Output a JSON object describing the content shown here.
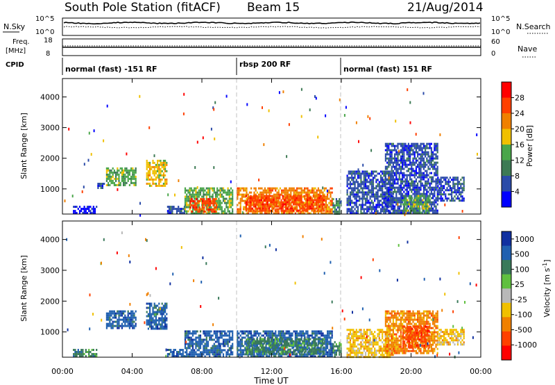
{
  "header": {
    "station": "South Pole Station (fitACF)",
    "beam": "Beam 15",
    "date": "21/Aug/2014"
  },
  "top_panels": {
    "nsky_label": "N.Sky",
    "nsearch_label": "N.Search",
    "nsky_ticks": [
      "10^5",
      "10^0"
    ],
    "nsearch_ticks": [
      "10^5",
      "10^0"
    ],
    "freq_label_line1": "Freq.",
    "freq_label_line2": "[MHz]",
    "freq_ticks": [
      "18",
      "8"
    ],
    "nave_label": "Nave",
    "nave_ticks": [
      "60",
      "0"
    ],
    "cpid_label": "CPID",
    "cpid_segments": [
      "normal (fast) -151 RF",
      "rbsp 200 RF",
      "normal (fast) 151 RF"
    ]
  },
  "chart_data": [
    {
      "type": "heatmap",
      "title": "",
      "ylabel": "Slant Range [km]",
      "xlabel": "",
      "ylim": [
        180,
        4600
      ],
      "x_ticks": [
        "00:00",
        "04:00",
        "08:00",
        "12:00",
        "16:00",
        "20:00",
        "00:00"
      ],
      "y_ticks": [
        1000,
        2000,
        3000,
        4000
      ],
      "colorbar": {
        "label": "Power [dB]",
        "ticks": [
          4,
          8,
          12,
          16,
          20,
          24,
          28
        ]
      },
      "mode_boundaries_hours": [
        10.0,
        16.0
      ],
      "regions": [
        {
          "t": [
            0.6,
            2.0
          ],
          "r": [
            180,
            450
          ],
          "level": 4
        },
        {
          "t": [
            2.0,
            2.4
          ],
          "r": [
            1000,
            1200
          ],
          "level": 8
        },
        {
          "t": [
            2.5,
            4.2
          ],
          "r": [
            1150,
            1700
          ],
          "level": 16
        },
        {
          "t": [
            4.8,
            6.0
          ],
          "r": [
            1100,
            1950
          ],
          "level": 20
        },
        {
          "t": [
            6.0,
            7.0
          ],
          "r": [
            180,
            450
          ],
          "level": 8
        },
        {
          "t": [
            7.0,
            9.8
          ],
          "r": [
            180,
            1050
          ],
          "level": 16
        },
        {
          "t": [
            7.3,
            8.8
          ],
          "r": [
            250,
            700
          ],
          "level": 28
        },
        {
          "t": [
            10.0,
            15.5
          ],
          "r": [
            180,
            1050
          ],
          "level": 24
        },
        {
          "t": [
            10.5,
            15.0
          ],
          "r": [
            300,
            800
          ],
          "level": 28
        },
        {
          "t": [
            15.5,
            16.0
          ],
          "r": [
            180,
            700
          ],
          "level": 12
        },
        {
          "t": [
            16.3,
            19.0
          ],
          "r": [
            180,
            1600
          ],
          "level": 8
        },
        {
          "t": [
            18.5,
            21.5
          ],
          "r": [
            200,
            2500
          ],
          "level": 8
        },
        {
          "t": [
            19.5,
            21.0
          ],
          "r": [
            250,
            800
          ],
          "level": 16
        },
        {
          "t": [
            21.5,
            23.0
          ],
          "r": [
            600,
            1400
          ],
          "level": 8
        }
      ]
    },
    {
      "type": "heatmap",
      "title": "",
      "ylabel": "Slant Range [km]",
      "xlabel": "Time UT",
      "ylim": [
        180,
        4600
      ],
      "x_ticks": [
        "00:00",
        "04:00",
        "08:00",
        "12:00",
        "16:00",
        "20:00",
        "00:00"
      ],
      "y_ticks": [
        1000,
        2000,
        3000,
        4000
      ],
      "colorbar": {
        "label": "Velocity [m s^-1]",
        "ticks": [
          "1000",
          "500",
          "100",
          "25",
          "-25",
          "-100",
          "-500",
          "-1000"
        ]
      },
      "mode_boundaries_hours": [
        10.0,
        16.0
      ],
      "regions": [
        {
          "t": [
            0.6,
            2.0
          ],
          "r": [
            180,
            450
          ],
          "level": 100
        },
        {
          "t": [
            2.5,
            4.2
          ],
          "r": [
            1150,
            1700
          ],
          "level": 500
        },
        {
          "t": [
            4.8,
            6.0
          ],
          "r": [
            1100,
            1950
          ],
          "level": 500
        },
        {
          "t": [
            6.0,
            7.0
          ],
          "r": [
            180,
            450
          ],
          "level": 500
        },
        {
          "t": [
            7.0,
            9.8
          ],
          "r": [
            180,
            1050
          ],
          "level": 500
        },
        {
          "t": [
            10.0,
            15.5
          ],
          "r": [
            180,
            1050
          ],
          "level": 500
        },
        {
          "t": [
            10.5,
            15.0
          ],
          "r": [
            300,
            800
          ],
          "level": 100
        },
        {
          "t": [
            15.5,
            16.0
          ],
          "r": [
            180,
            700
          ],
          "level": 100
        },
        {
          "t": [
            16.3,
            19.0
          ],
          "r": [
            180,
            1100
          ],
          "level": -100
        },
        {
          "t": [
            18.5,
            21.5
          ],
          "r": [
            300,
            1700
          ],
          "level": -500
        },
        {
          "t": [
            19.5,
            21.0
          ],
          "r": [
            500,
            1200
          ],
          "level": -1000
        },
        {
          "t": [
            21.5,
            23.0
          ],
          "r": [
            600,
            1100
          ],
          "level": -100
        }
      ]
    }
  ],
  "colors": {
    "power_scale": [
      "#0000ff",
      "#2b4ba8",
      "#3d7a54",
      "#4aa64a",
      "#f0c000",
      "#f08000",
      "#ff4000",
      "#ff0000"
    ],
    "velocity_scale": [
      "#1030a0",
      "#2060b0",
      "#3a7a5a",
      "#60c040",
      "#b8b8b8",
      "#f0c000",
      "#f08000",
      "#ff4000",
      "#ff0000"
    ],
    "dashed_boundary": "#c0c0c0"
  }
}
